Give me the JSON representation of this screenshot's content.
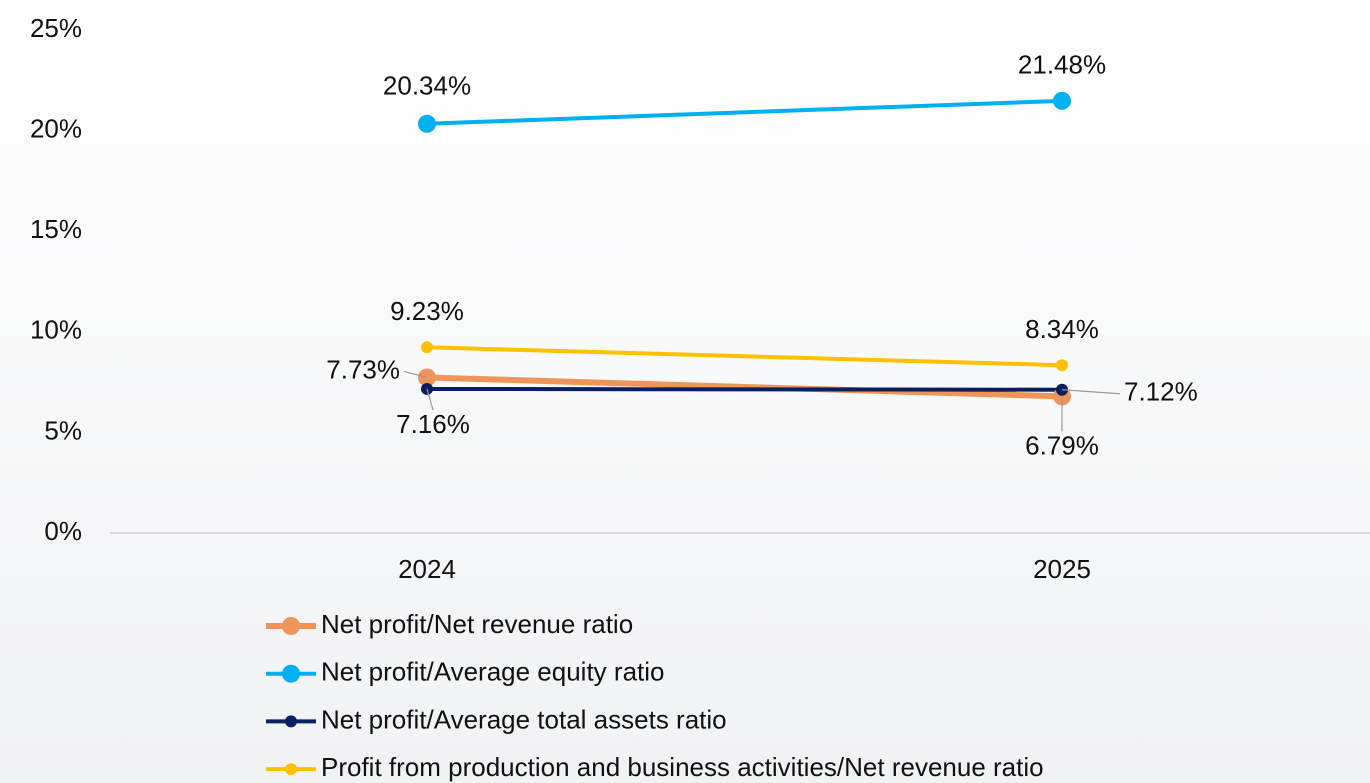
{
  "chart_data": {
    "type": "line",
    "categories": [
      "2024",
      "2025"
    ],
    "series": [
      {
        "name": "Net profit/Net revenue ratio",
        "color": "#F0955A",
        "values": [
          7.73,
          6.79
        ],
        "value_labels": [
          "7.73%",
          "6.79%"
        ]
      },
      {
        "name": "Net profit/Average equity ratio",
        "color": "#00B0F0",
        "values": [
          20.34,
          21.48
        ],
        "value_labels": [
          "20.34%",
          "21.48%"
        ]
      },
      {
        "name": "Net profit/Average total assets ratio",
        "color": "#0B1F5E",
        "values": [
          7.16,
          7.12
        ],
        "value_labels": [
          "7.16%",
          "7.12%"
        ]
      },
      {
        "name": "Profit from production and business activities/Net revenue ratio",
        "color": "#FFC000",
        "values": [
          9.23,
          8.34
        ],
        "value_labels": [
          "9.23%",
          "8.34%"
        ]
      }
    ],
    "ylim": [
      0,
      25
    ],
    "yticks": [
      {
        "value": 0,
        "label": "0%"
      },
      {
        "value": 5,
        "label": "5%"
      },
      {
        "value": 10,
        "label": "10%"
      },
      {
        "value": 15,
        "label": "15%"
      },
      {
        "value": 20,
        "label": "20%"
      },
      {
        "value": 25,
        "label": "25%"
      }
    ],
    "grid": false,
    "legend": "bottom"
  }
}
